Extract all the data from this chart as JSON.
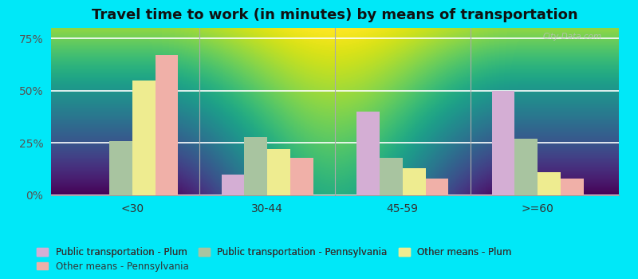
{
  "title": "Travel time to work (in minutes) by means of transportation",
  "categories": [
    "<30",
    "30-44",
    "45-59",
    ">=60"
  ],
  "series": {
    "Public transportation - Plum": [
      0,
      10,
      40,
      50
    ],
    "Public transportation - Pennsylvania": [
      26,
      28,
      18,
      27
    ],
    "Other means - Plum": [
      55,
      22,
      13,
      11
    ],
    "Other means - Pennsylvania": [
      67,
      18,
      8,
      8
    ]
  },
  "colors": {
    "Public transportation - Plum": "#d4aed4",
    "Public transportation - Pennsylvania": "#a8c4a0",
    "Other means - Plum": "#eeec90",
    "Other means - Pennsylvania": "#f0b0a8"
  },
  "ylim": [
    0,
    80
  ],
  "yticks": [
    0,
    25,
    50,
    75
  ],
  "ytick_labels": [
    "0%",
    "25%",
    "50%",
    "75%"
  ],
  "chart_bg_top": "#f0f8f0",
  "chart_bg_bottom": "#d0ecd0",
  "outer_background": "#00e8f8",
  "title_fontsize": 13,
  "legend_fontsize": 8.5,
  "watermark": "City-Data.com",
  "bar_width": 0.17
}
